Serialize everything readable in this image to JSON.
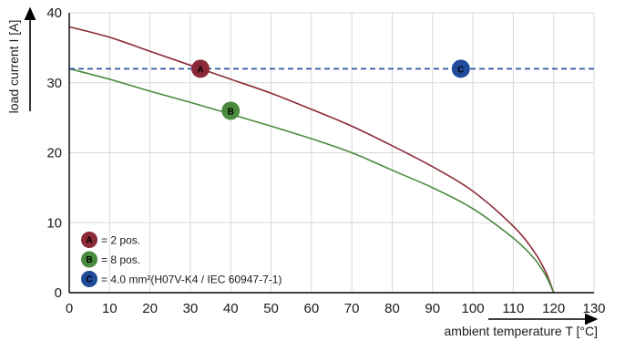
{
  "chart_data": {
    "type": "line",
    "title": "",
    "xlabel": "ambient temperature T [°C]",
    "ylabel": "load current I [A]",
    "xlim": [
      0,
      130
    ],
    "ylim": [
      0,
      40
    ],
    "x_ticks": [
      0,
      10,
      20,
      30,
      40,
      50,
      60,
      70,
      80,
      90,
      100,
      110,
      120,
      130
    ],
    "y_ticks": [
      0,
      10,
      20,
      30,
      40
    ],
    "grid": true,
    "legend_position": "bottom-left",
    "series": [
      {
        "id": "A",
        "color": "#8b2a36",
        "style": "solid",
        "marker_at": [
          32.5,
          32
        ],
        "points": [
          [
            0,
            38
          ],
          [
            10,
            36.5
          ],
          [
            20,
            34.5
          ],
          [
            30,
            32.5
          ],
          [
            40,
            30.5
          ],
          [
            50,
            28.5
          ],
          [
            60,
            26.2
          ],
          [
            70,
            23.8
          ],
          [
            80,
            21
          ],
          [
            90,
            18
          ],
          [
            100,
            14.5
          ],
          [
            110,
            9.5
          ],
          [
            115,
            6
          ],
          [
            118,
            3
          ],
          [
            120,
            0
          ]
        ]
      },
      {
        "id": "B",
        "color": "#4a8a3e",
        "style": "solid",
        "marker_at": [
          40,
          26
        ],
        "points": [
          [
            0,
            32
          ],
          [
            10,
            30.5
          ],
          [
            20,
            28.8
          ],
          [
            30,
            27.2
          ],
          [
            40,
            25.5
          ],
          [
            50,
            23.8
          ],
          [
            60,
            22
          ],
          [
            70,
            20
          ],
          [
            80,
            17.5
          ],
          [
            90,
            15
          ],
          [
            100,
            12
          ],
          [
            110,
            7.8
          ],
          [
            115,
            5
          ],
          [
            118,
            2.5
          ],
          [
            120,
            0
          ]
        ]
      },
      {
        "id": "C",
        "color": "#1f4b99",
        "style": "dashed",
        "marker_at": [
          97,
          32
        ],
        "points": [
          [
            0,
            32
          ],
          [
            130,
            32
          ]
        ]
      }
    ],
    "legend": [
      {
        "marker": "A",
        "color": "#8b2a36",
        "text": "= 2 pos."
      },
      {
        "marker": "B",
        "color": "#4a8a3e",
        "text": "= 8 pos."
      },
      {
        "marker": "C",
        "color": "#1f4b99",
        "text": "= 4.0 mm²(H07V-K4 / IEC 60947-7-1)"
      }
    ]
  }
}
